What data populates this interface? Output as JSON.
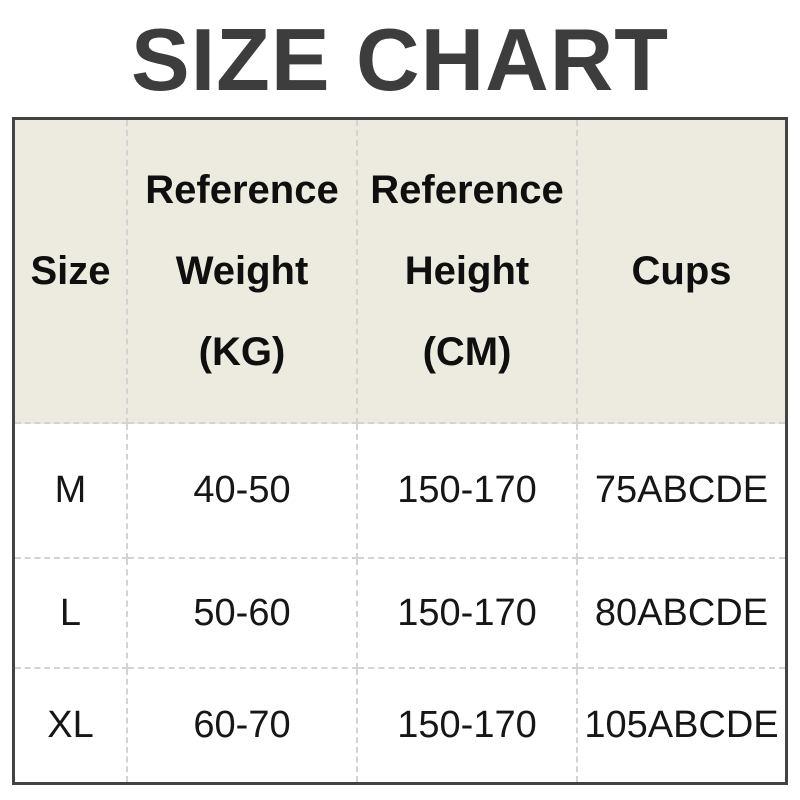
{
  "title": "SIZE CHART",
  "chart_data": {
    "type": "table",
    "title": "SIZE CHART",
    "columns": [
      "Size",
      "Reference Weight (KG)",
      "Reference Height (CM)",
      "Cups"
    ],
    "rows": [
      [
        "M",
        "40-50",
        "150-170",
        "75ABCDE"
      ],
      [
        "L",
        "50-60",
        "150-170",
        "80ABCDE"
      ],
      [
        "XL",
        "60-70",
        "150-170",
        "105ABCDE"
      ]
    ]
  },
  "table": {
    "header": {
      "size": "Size",
      "weight": [
        "Reference",
        "Weight",
        "(KG)"
      ],
      "height": [
        "Reference",
        "Height",
        "(CM)"
      ],
      "cups": "Cups"
    }
  },
  "colors": {
    "header_bg": "#edebe0",
    "outer_border": "#434343",
    "grid_dashed": "#d3d3d3",
    "title_color": "#3d3d3d",
    "text_color": "#161616",
    "page_bg": "#ffffff"
  }
}
